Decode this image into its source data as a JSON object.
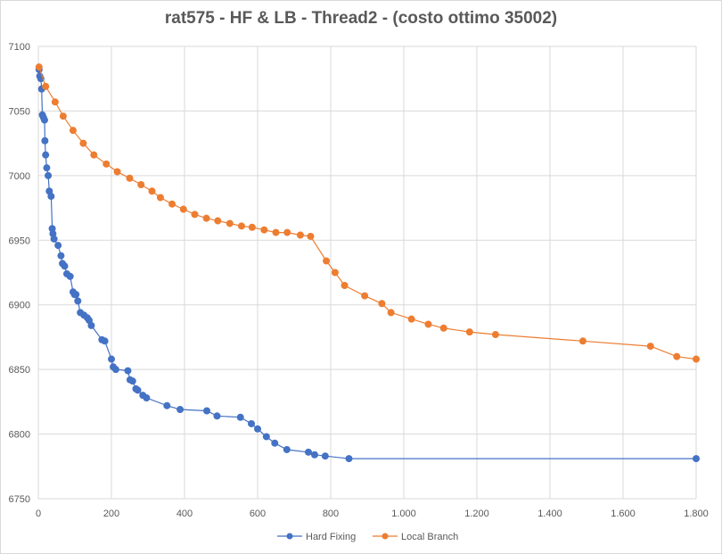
{
  "chart_data": {
    "type": "line",
    "title": "rat575 - HF & LB - Thread2 - (costo ottimo 35002)",
    "xlabel": "",
    "ylabel": "",
    "xlim": [
      0,
      1800
    ],
    "ylim": [
      6750,
      7100
    ],
    "x_ticks": [
      0,
      200,
      400,
      600,
      800,
      1000,
      1200,
      1400,
      1600,
      1800
    ],
    "x_tick_labels": [
      "0",
      "200",
      "400",
      "600",
      "800",
      "1.000",
      "1.200",
      "1.400",
      "1.600",
      "1.800"
    ],
    "y_ticks": [
      6750,
      6800,
      6850,
      6900,
      6950,
      7000,
      7050,
      7100
    ],
    "y_tick_labels": [
      "6750",
      "6800",
      "6850",
      "6900",
      "6950",
      "7000",
      "7050",
      "7100"
    ],
    "grid": true,
    "legend": "bottom",
    "series": [
      {
        "name": "Hard Fixing",
        "color": "#4472c4",
        "points": [
          [
            2,
            7082
          ],
          [
            4,
            7077
          ],
          [
            7,
            7075
          ],
          [
            9,
            7067
          ],
          [
            11,
            7047
          ],
          [
            14,
            7045
          ],
          [
            17,
            7043
          ],
          [
            18,
            7027
          ],
          [
            20,
            7016
          ],
          [
            23,
            7006
          ],
          [
            27,
            7000
          ],
          [
            30,
            6988
          ],
          [
            35,
            6984
          ],
          [
            38,
            6959
          ],
          [
            40,
            6955
          ],
          [
            43,
            6951
          ],
          [
            54,
            6946
          ],
          [
            62,
            6938
          ],
          [
            66,
            6932
          ],
          [
            72,
            6930
          ],
          [
            78,
            6924
          ],
          [
            87,
            6922
          ],
          [
            95,
            6910
          ],
          [
            99,
            6908
          ],
          [
            103,
            6908
          ],
          [
            108,
            6903
          ],
          [
            115,
            6894
          ],
          [
            125,
            6892
          ],
          [
            134,
            6890
          ],
          [
            139,
            6888
          ],
          [
            145,
            6884
          ],
          [
            174,
            6873
          ],
          [
            182,
            6872
          ],
          [
            200,
            6858
          ],
          [
            205,
            6852
          ],
          [
            212,
            6850
          ],
          [
            245,
            6849
          ],
          [
            251,
            6842
          ],
          [
            258,
            6841
          ],
          [
            267,
            6835
          ],
          [
            272,
            6834
          ],
          [
            286,
            6830
          ],
          [
            296,
            6828
          ],
          [
            352,
            6822
          ],
          [
            388,
            6819
          ],
          [
            461,
            6818
          ],
          [
            489,
            6814
          ],
          [
            553,
            6813
          ],
          [
            583,
            6808
          ],
          [
            600,
            6804
          ],
          [
            624,
            6798
          ],
          [
            647,
            6793
          ],
          [
            680,
            6788
          ],
          [
            739,
            6786
          ],
          [
            756,
            6784
          ],
          [
            785,
            6783
          ],
          [
            850,
            6781
          ],
          [
            1800,
            6781
          ]
        ]
      },
      {
        "name": "Local Branch",
        "color": "#ed7d31",
        "points": [
          [
            2,
            7084
          ],
          [
            20,
            7069
          ],
          [
            46,
            7057
          ],
          [
            68,
            7046
          ],
          [
            95,
            7035
          ],
          [
            123,
            7025
          ],
          [
            152,
            7016
          ],
          [
            186,
            7009
          ],
          [
            216,
            7003
          ],
          [
            250,
            6998
          ],
          [
            281,
            6993
          ],
          [
            311,
            6988
          ],
          [
            334,
            6983
          ],
          [
            366,
            6978
          ],
          [
            397,
            6974
          ],
          [
            428,
            6970
          ],
          [
            460,
            6967
          ],
          [
            491,
            6965
          ],
          [
            524,
            6963
          ],
          [
            556,
            6961
          ],
          [
            585,
            6960
          ],
          [
            618,
            6958
          ],
          [
            650,
            6956
          ],
          [
            681,
            6956
          ],
          [
            717,
            6954
          ],
          [
            745,
            6953
          ],
          [
            788,
            6934
          ],
          [
            812,
            6925
          ],
          [
            838,
            6915
          ],
          [
            893,
            6907
          ],
          [
            940,
            6901
          ],
          [
            965,
            6894
          ],
          [
            1021,
            6889
          ],
          [
            1067,
            6885
          ],
          [
            1109,
            6882
          ],
          [
            1180,
            6879
          ],
          [
            1251,
            6877
          ],
          [
            1490,
            6872
          ],
          [
            1675,
            6868
          ],
          [
            1747,
            6860
          ],
          [
            1800,
            6858
          ]
        ]
      }
    ]
  }
}
